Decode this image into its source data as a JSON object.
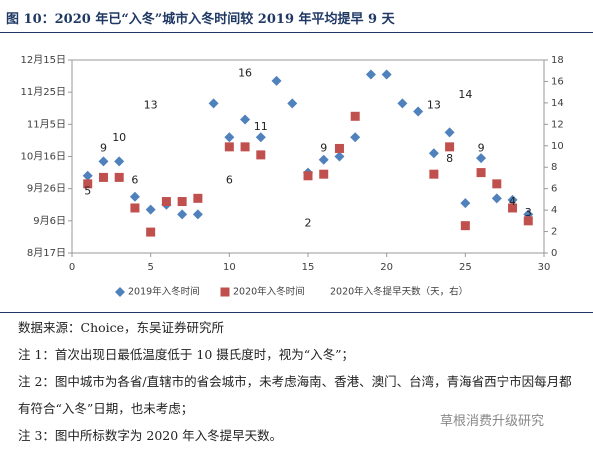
{
  "title": "图 10：2020 年已“入冬”城市入冬时间较 2019 年平均提早 9 天",
  "chart_data": {
    "type": "scatter",
    "xlim": [
      0,
      30
    ],
    "xticks": [
      0,
      5,
      10,
      15,
      20,
      25,
      30
    ],
    "ylim": [
      0,
      120
    ],
    "yticks": [
      {
        "value": 0,
        "label": "8月17日"
      },
      {
        "value": 20,
        "label": "9月6日"
      },
      {
        "value": 40,
        "label": "9月26日"
      },
      {
        "value": 60,
        "label": "10月16日"
      },
      {
        "value": 80,
        "label": "11月5日"
      },
      {
        "value": 100,
        "label": "11月25日"
      },
      {
        "value": 120,
        "label": "12月15日"
      }
    ],
    "y2lim": [
      0,
      18
    ],
    "y2ticks": [
      0,
      2,
      4,
      6,
      8,
      10,
      12,
      14,
      16,
      18
    ],
    "x": [
      1,
      2,
      3,
      4,
      5,
      6,
      7,
      8,
      9,
      10,
      11,
      12,
      13,
      14,
      15,
      16,
      17,
      18,
      19,
      20,
      21,
      22,
      23,
      24,
      25,
      26,
      27,
      28,
      29
    ],
    "series": [
      {
        "name": "2019年入冬时间",
        "color": "#4f81bd",
        "marker": "diamond",
        "values": [
          48,
          57,
          57,
          35,
          27,
          30,
          24,
          24,
          93,
          72,
          83,
          72,
          107,
          93,
          50,
          58,
          60,
          72,
          111,
          111,
          93,
          88,
          62,
          75,
          31,
          59,
          34,
          33,
          24
        ]
      },
      {
        "name": "2020年入冬时间",
        "color": "#c0504d",
        "marker": "square",
        "values": [
          43,
          47,
          47,
          28,
          13,
          32,
          32,
          34,
          null,
          66,
          66,
          61,
          null,
          null,
          48,
          49,
          65,
          85,
          null,
          null,
          null,
          null,
          49,
          66,
          17,
          50,
          43,
          28,
          20
        ]
      },
      {
        "name": "2020年入冬提早天数（天，右）",
        "axis": "y2",
        "marker": "label",
        "values": [
          5,
          9,
          10,
          6,
          13,
          null,
          null,
          null,
          null,
          6,
          16,
          11,
          null,
          null,
          2,
          9,
          null,
          null,
          null,
          null,
          null,
          null,
          13,
          8,
          14,
          9,
          null,
          4,
          3
        ]
      }
    ]
  },
  "source": "数据来源：Choice，东吴证券研究所",
  "notes": [
    "注 1：首次出现日最低温度低于 10 摄氏度时，视为“入冬”；",
    "注 2：图中城市为各省/直辖市的省会城市，未考虑海南、香港、澳门、台湾，青海省西宁市因每月都有符合“入冬”日期，也未考虑；",
    "注 3：图中所标数字为 2020 年入冬提早天数。"
  ],
  "watermark": "草根消费升级研究"
}
